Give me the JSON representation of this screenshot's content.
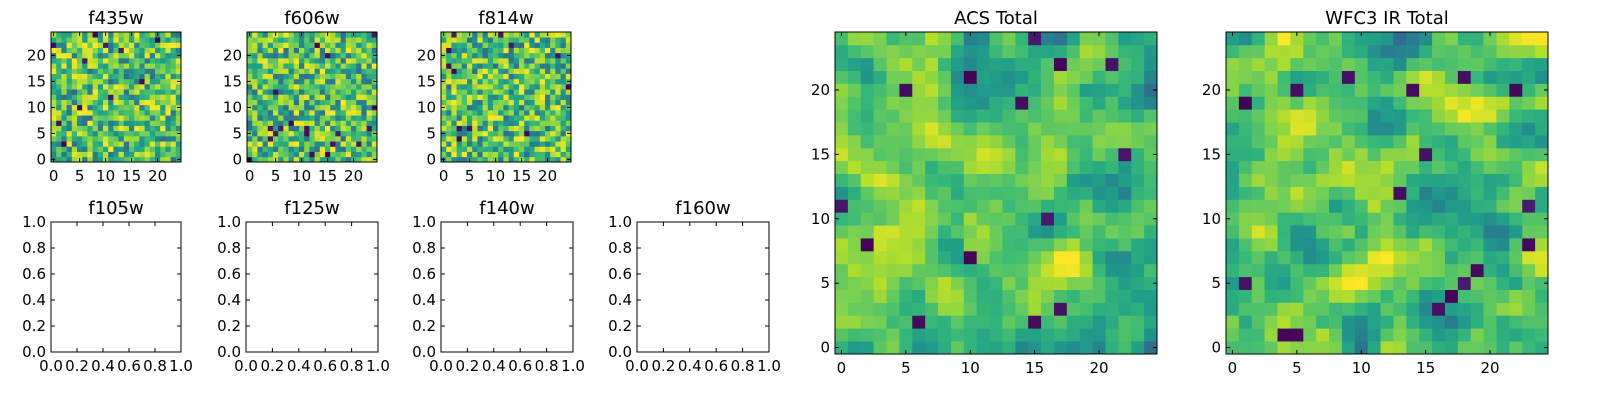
{
  "chart_data": [
    {
      "type": "heatmap",
      "title": "f435w",
      "empty": false,
      "colormap": "viridis",
      "grid": [
        25,
        25
      ],
      "xticks": [
        "0",
        "5",
        "10",
        "15",
        "20"
      ],
      "yticks": [
        "0",
        "5",
        "10",
        "15",
        "20"
      ],
      "seed": 11
    },
    {
      "type": "heatmap",
      "title": "f606w",
      "empty": false,
      "colormap": "viridis",
      "grid": [
        25,
        25
      ],
      "xticks": [
        "0",
        "5",
        "10",
        "15",
        "20"
      ],
      "yticks": [
        "0",
        "5",
        "10",
        "15",
        "20"
      ],
      "seed": 23
    },
    {
      "type": "heatmap",
      "title": "f814w",
      "empty": false,
      "colormap": "viridis",
      "grid": [
        25,
        25
      ],
      "xticks": [
        "0",
        "5",
        "10",
        "15",
        "20"
      ],
      "yticks": [
        "0",
        "5",
        "10",
        "15",
        "20"
      ],
      "seed": 37
    },
    {
      "type": "heatmap",
      "title": "f105w",
      "empty": true,
      "xticks": [
        "0.0",
        "0.2",
        "0.4",
        "0.6",
        "0.8",
        "1.0"
      ],
      "yticks": [
        "0.0",
        "0.2",
        "0.4",
        "0.6",
        "0.8",
        "1.0"
      ],
      "xlim": [
        0,
        1
      ],
      "ylim": [
        0,
        1
      ]
    },
    {
      "type": "heatmap",
      "title": "f125w",
      "empty": true,
      "xticks": [
        "0.0",
        "0.2",
        "0.4",
        "0.6",
        "0.8",
        "1.0"
      ],
      "yticks": [
        "0.0",
        "0.2",
        "0.4",
        "0.6",
        "0.8",
        "1.0"
      ],
      "xlim": [
        0,
        1
      ],
      "ylim": [
        0,
        1
      ]
    },
    {
      "type": "heatmap",
      "title": "f140w",
      "empty": true,
      "xticks": [
        "0.0",
        "0.2",
        "0.4",
        "0.6",
        "0.8",
        "1.0"
      ],
      "yticks": [
        "0.0",
        "0.2",
        "0.4",
        "0.6",
        "0.8",
        "1.0"
      ],
      "xlim": [
        0,
        1
      ],
      "ylim": [
        0,
        1
      ]
    },
    {
      "type": "heatmap",
      "title": "f160w",
      "empty": true,
      "xticks": [
        "0.0",
        "0.2",
        "0.4",
        "0.6",
        "0.8",
        "1.0"
      ],
      "yticks": [
        "0.0",
        "0.2",
        "0.4",
        "0.6",
        "0.8",
        "1.0"
      ],
      "xlim": [
        0,
        1
      ],
      "ylim": [
        0,
        1
      ]
    },
    {
      "type": "heatmap",
      "title": "ACS Total",
      "empty": false,
      "colormap": "viridis",
      "grid": [
        25,
        25
      ],
      "xticks": [
        "0",
        "5",
        "10",
        "15",
        "20"
      ],
      "yticks": [
        "0",
        "5",
        "10",
        "15",
        "20"
      ],
      "seed": 53
    },
    {
      "type": "heatmap",
      "title": "WFC3 IR Total",
      "empty": false,
      "colormap": "viridis",
      "grid": [
        25,
        25
      ],
      "xticks": [
        "0",
        "5",
        "10",
        "15",
        "20"
      ],
      "yticks": [
        "0",
        "5",
        "10",
        "15",
        "20"
      ],
      "seed": 71
    }
  ]
}
